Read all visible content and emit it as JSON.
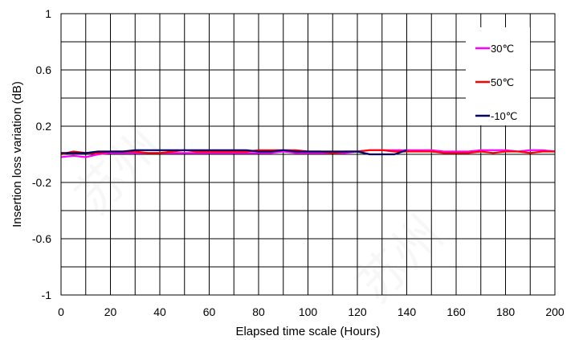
{
  "chart_data": {
    "type": "line",
    "xlabel": "Elapsed time scale (Hours)",
    "ylabel": "Insertion loss variation (dB)",
    "xlim": [
      0,
      200
    ],
    "ylim": [
      -1,
      1
    ],
    "xticks": [
      0,
      20,
      40,
      60,
      80,
      100,
      120,
      140,
      160,
      180,
      200
    ],
    "x_tick_labels": [
      "0",
      "20",
      "40",
      "60",
      "80",
      "100",
      "120",
      "140",
      "160",
      "180",
      "200"
    ],
    "yticks": [
      -1,
      -0.6,
      -0.2,
      0.2,
      0.6,
      1
    ],
    "y_tick_labels": [
      "-1",
      "-0.6",
      "-0.2",
      "0.2",
      "0.6",
      "1"
    ],
    "grid": true,
    "legend_position": "top-right",
    "x": [
      0,
      5,
      10,
      15,
      20,
      25,
      30,
      35,
      40,
      45,
      50,
      55,
      60,
      65,
      70,
      75,
      80,
      85,
      90,
      95,
      100,
      105,
      110,
      115,
      120,
      125,
      130,
      135,
      140,
      145,
      150,
      155,
      160,
      165,
      170,
      175,
      180,
      185,
      190,
      195,
      200
    ],
    "series": [
      {
        "name": "30℃",
        "color": "#ff00ff",
        "values": [
          -0.02,
          -0.01,
          -0.02,
          0.0,
          0.01,
          0.01,
          0.01,
          0.01,
          0.01,
          0.01,
          0.01,
          0.01,
          0.01,
          0.01,
          0.01,
          0.01,
          0.01,
          0.01,
          0.02,
          0.01,
          0.01,
          0.01,
          0.01,
          0.01,
          0.02,
          0.03,
          0.03,
          0.03,
          0.03,
          0.03,
          0.03,
          0.02,
          0.02,
          0.02,
          0.03,
          0.03,
          0.03,
          0.02,
          0.03,
          0.03,
          0.02
        ]
      },
      {
        "name": "50℃",
        "color": "#ff0000",
        "values": [
          0.0,
          0.02,
          0.01,
          0.01,
          0.02,
          0.02,
          0.02,
          0.01,
          0.01,
          0.02,
          0.03,
          0.02,
          0.02,
          0.02,
          0.02,
          0.02,
          0.03,
          0.03,
          0.03,
          0.03,
          0.02,
          0.02,
          0.01,
          0.02,
          0.02,
          0.03,
          0.03,
          0.02,
          0.02,
          0.02,
          0.02,
          0.01,
          0.01,
          0.01,
          0.02,
          0.01,
          0.02,
          0.02,
          0.01,
          0.02,
          0.02
        ]
      },
      {
        "name": "-10℃",
        "color": "#000066",
        "values": [
          0.01,
          0.01,
          0.01,
          0.02,
          0.02,
          0.02,
          0.03,
          0.03,
          0.03,
          0.03,
          0.03,
          0.03,
          0.03,
          0.03,
          0.03,
          0.03,
          0.02,
          0.02,
          0.03,
          0.02,
          0.02,
          0.02,
          0.02,
          0.02,
          0.02,
          0.0,
          0.0,
          0.0,
          0.03,
          null,
          null,
          null,
          null,
          null,
          null,
          null,
          null,
          null,
          null,
          null,
          null
        ]
      }
    ]
  }
}
